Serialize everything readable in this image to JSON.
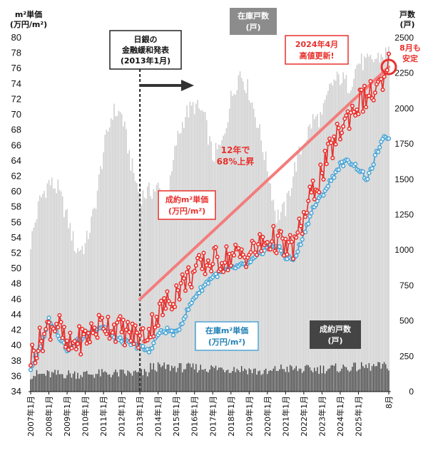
{
  "chart_data": {
    "type": "combo-bar-line",
    "left_axis": {
      "label_line1": "m²単価",
      "label_line2": "(万円/m²)",
      "ylim": [
        34,
        80
      ],
      "ticks": [
        34,
        36,
        38,
        40,
        42,
        44,
        46,
        48,
        50,
        52,
        54,
        56,
        58,
        60,
        62,
        64,
        66,
        68,
        70,
        72,
        74,
        76,
        78,
        80
      ]
    },
    "right_axis": {
      "label_line1": "戸数",
      "label_line2": "(戸)",
      "ylim": [
        0,
        2500
      ],
      "ticks": [
        0,
        250,
        500,
        750,
        1000,
        1250,
        1500,
        1750,
        2000,
        2250,
        2500
      ]
    },
    "x_labels": [
      "2007年1月",
      "2008年1月",
      "2009年1月",
      "2010年1月",
      "2011年1月",
      "2012年1月",
      "2013年1月",
      "2014年1月",
      "2015年1月",
      "2016年1月",
      "2017年1月",
      "2018年1月",
      "2019年1月",
      "2020年1月",
      "2021年1月",
      "2022年1月",
      "2023年1月",
      "2024年1月",
      "2025年1月",
      "8月"
    ],
    "series": [
      {
        "name": "在庫戸数",
        "unit": "戸",
        "axis": "right",
        "color": "#cfcfcf",
        "keyframes": [
          [
            0,
            1050
          ],
          [
            6,
            1350
          ],
          [
            12,
            1480
          ],
          [
            18,
            1430
          ],
          [
            24,
            1230
          ],
          [
            30,
            1000
          ],
          [
            36,
            1030
          ],
          [
            42,
            1280
          ],
          [
            48,
            1700
          ],
          [
            54,
            1980
          ],
          [
            60,
            1960
          ],
          [
            66,
            1620
          ],
          [
            72,
            1380
          ],
          [
            84,
            1440
          ],
          [
            90,
            1320
          ],
          [
            96,
            1760
          ],
          [
            102,
            1960
          ],
          [
            108,
            2020
          ],
          [
            114,
            1960
          ],
          [
            120,
            1660
          ],
          [
            126,
            1740
          ],
          [
            132,
            2070
          ],
          [
            138,
            2260
          ],
          [
            144,
            2120
          ],
          [
            150,
            1880
          ],
          [
            156,
            1580
          ],
          [
            162,
            1240
          ],
          [
            168,
            1290
          ],
          [
            174,
            1580
          ],
          [
            180,
            1760
          ],
          [
            186,
            1920
          ],
          [
            192,
            1940
          ],
          [
            198,
            2170
          ],
          [
            204,
            2220
          ],
          [
            210,
            2160
          ],
          [
            216,
            2330
          ],
          [
            222,
            2320
          ]
        ]
      },
      {
        "name": "成約戸数",
        "unit": "戸",
        "axis": "right",
        "color": "#3a3a3a",
        "keyframes": [
          [
            0,
            120
          ],
          [
            78,
            130
          ],
          [
            79,
            175
          ],
          [
            140,
            160
          ],
          [
            156,
            130
          ],
          [
            164,
            165
          ],
          [
            180,
            155
          ],
          [
            222,
            175
          ]
        ]
      },
      {
        "name": "在庫m²単価",
        "unit": "万円/m²",
        "axis": "left",
        "color": "#4da6d6",
        "keyframes": [
          [
            0,
            37.0
          ],
          [
            6,
            39.5
          ],
          [
            12,
            43.5
          ],
          [
            18,
            41.5
          ],
          [
            24,
            39.5
          ],
          [
            30,
            40.5
          ],
          [
            36,
            41.2
          ],
          [
            42,
            42.2
          ],
          [
            48,
            42.5
          ],
          [
            54,
            41.0
          ],
          [
            60,
            40.6
          ],
          [
            66,
            40.2
          ],
          [
            72,
            39.8
          ],
          [
            78,
            39.2
          ],
          [
            84,
            41.5
          ],
          [
            90,
            42.0
          ],
          [
            96,
            41.5
          ],
          [
            102,
            44.0
          ],
          [
            108,
            46.3
          ],
          [
            114,
            47.7
          ],
          [
            120,
            49.0
          ],
          [
            132,
            50.0
          ],
          [
            144,
            50.6
          ],
          [
            156,
            52.8
          ],
          [
            162,
            53.0
          ],
          [
            168,
            51.5
          ],
          [
            174,
            51.2
          ],
          [
            180,
            54.5
          ],
          [
            186,
            57.8
          ],
          [
            192,
            59.5
          ],
          [
            198,
            61.5
          ],
          [
            204,
            63.5
          ],
          [
            210,
            64.0
          ],
          [
            216,
            63.0
          ],
          [
            222,
            61.5
          ],
          [
            228,
            65.0
          ],
          [
            234,
            67.3
          ],
          [
            236,
            66.8
          ]
        ]
      },
      {
        "name": "成約m²単価",
        "unit": "万円/m²",
        "axis": "left",
        "color": "#e8312d",
        "keyframes": [
          [
            0,
            38.5
          ],
          [
            6,
            40.5
          ],
          [
            12,
            42.5
          ],
          [
            18,
            43.0
          ],
          [
            24,
            39.5
          ],
          [
            30,
            40.5
          ],
          [
            36,
            41.0
          ],
          [
            42,
            42.0
          ],
          [
            48,
            43.0
          ],
          [
            54,
            42.5
          ],
          [
            60,
            42.0
          ],
          [
            66,
            41.5
          ],
          [
            72,
            41.0
          ],
          [
            78,
            42.0
          ],
          [
            84,
            44.0
          ],
          [
            90,
            45.5
          ],
          [
            96,
            47.0
          ],
          [
            102,
            48.5
          ],
          [
            108,
            49.5
          ],
          [
            114,
            50.5
          ],
          [
            120,
            51.0
          ],
          [
            132,
            51.5
          ],
          [
            144,
            52.0
          ],
          [
            156,
            53.5
          ],
          [
            162,
            53.8
          ],
          [
            168,
            52.5
          ],
          [
            174,
            53.0
          ],
          [
            180,
            56.5
          ],
          [
            186,
            60.0
          ],
          [
            192,
            62.5
          ],
          [
            198,
            65.5
          ],
          [
            204,
            68.0
          ],
          [
            210,
            70.0
          ],
          [
            216,
            71.5
          ],
          [
            222,
            72.5
          ],
          [
            228,
            73.0
          ],
          [
            234,
            74.0
          ],
          [
            236,
            76.5
          ]
        ]
      }
    ],
    "trend_line": {
      "from": [
        72,
        46.0
      ],
      "to": [
        236,
        76.2
      ],
      "color": "#f47c7c"
    },
    "annotations": {
      "boj_title1": "日銀の",
      "boj_title2": "金融緩和発表",
      "boj_title3": "(2013年1月)",
      "trend1": "12年で",
      "trend2": "68%上昇",
      "red_label1": "成約m²単価",
      "red_label2": "(万円/m²)",
      "blue_label1": "在庫m²単価",
      "blue_label2": "(万円/m²)",
      "dark_label1": "成約戸数",
      "dark_label2": "(戸)",
      "inv_label1": "在庫戸数",
      "inv_label2": "(戸)",
      "peak1": "2024年4月",
      "peak2": "高値更新!",
      "aug1": "8月も",
      "aug2": "安定"
    }
  }
}
